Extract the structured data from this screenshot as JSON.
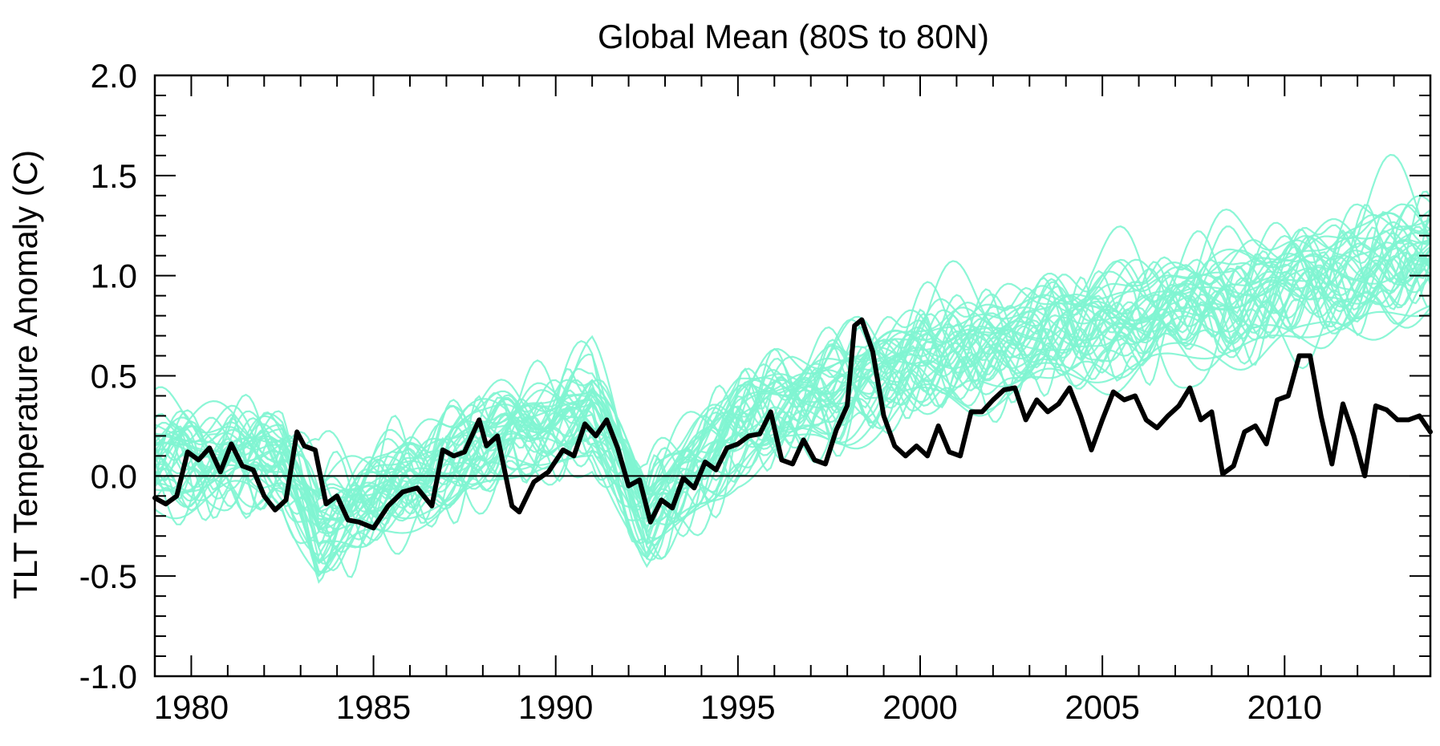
{
  "chart_data": {
    "type": "line",
    "title": "Global Mean (80S to 80N)",
    "xlabel": "",
    "ylabel": "TLT Temperature Anomaly (C)",
    "xlim": [
      1979.0,
      2014.0
    ],
    "ylim": [
      -1.0,
      2.0
    ],
    "x_ticks": [
      1980,
      1985,
      1990,
      1995,
      2000,
      2005,
      2010
    ],
    "x_tick_labels": [
      "1980",
      "1985",
      "1990",
      "1995",
      "2000",
      "2005",
      "2010"
    ],
    "y_ticks": [
      -1.0,
      -0.5,
      0.0,
      0.5,
      1.0,
      1.5,
      2.0
    ],
    "y_tick_labels": [
      "-1.0",
      "-0.5",
      "0.0",
      "0.5",
      "1.0",
      "1.5",
      "2.0"
    ],
    "zero_line": true,
    "grid": false,
    "legend": "none",
    "colors": {
      "observed": "#000000",
      "ensemble": "#7ff5d2",
      "axes": "#000000"
    },
    "ensemble_size": 40,
    "ensemble_trend": {
      "x": [
        1979.0,
        1982.5,
        1983.5,
        1987.5,
        1991.0,
        1992.5,
        1995.0,
        2000.0,
        2005.0,
        2010.0,
        2014.0
      ],
      "y": [
        0.05,
        0.05,
        -0.3,
        0.05,
        0.25,
        -0.3,
        0.15,
        0.45,
        0.6,
        0.75,
        0.9
      ]
    },
    "series": [
      {
        "x": [
          1979.0,
          1979.3,
          1979.6,
          1979.9,
          1980.2,
          1980.5,
          1980.8,
          1981.1,
          1981.4,
          1981.7,
          1982.0,
          1982.3,
          1982.6,
          1982.9,
          1983.1,
          1983.4,
          1983.7,
          1984.0,
          1984.3,
          1984.6,
          1985.0,
          1985.4,
          1985.8,
          1986.2,
          1986.6,
          1986.9,
          1987.2,
          1987.5,
          1987.9,
          1988.1,
          1988.4,
          1988.8,
          1989.0,
          1989.4,
          1989.8,
          1990.2,
          1990.5,
          1990.8,
          1991.1,
          1991.4,
          1991.7,
          1992.0,
          1992.3,
          1992.6,
          1992.9,
          1993.2,
          1993.5,
          1993.8,
          1994.1,
          1994.4,
          1994.7,
          1995.0,
          1995.3,
          1995.6,
          1995.9,
          1996.2,
          1996.5,
          1996.8,
          1997.1,
          1997.4,
          1997.7,
          1998.0,
          1998.2,
          1998.4,
          1998.7,
          1999.0,
          1999.3,
          1999.6,
          1999.9,
          2000.2,
          2000.5,
          2000.8,
          2001.1,
          2001.4,
          2001.7,
          2002.0,
          2002.3,
          2002.6,
          2002.9,
          2003.2,
          2003.5,
          2003.8,
          2004.1,
          2004.4,
          2004.7,
          2005.0,
          2005.3,
          2005.6,
          2005.9,
          2006.2,
          2006.5,
          2006.8,
          2007.1,
          2007.4,
          2007.7,
          2008.0,
          2008.3,
          2008.6,
          2008.9,
          2009.2,
          2009.5,
          2009.8,
          2010.1,
          2010.4,
          2010.7,
          2011.0,
          2011.3,
          2011.6,
          2011.9,
          2012.2,
          2012.5,
          2012.8,
          2013.1,
          2013.4,
          2013.7,
          2014.0
        ],
        "y": [
          -0.11,
          -0.14,
          -0.1,
          0.12,
          0.08,
          0.14,
          0.02,
          0.16,
          0.05,
          0.03,
          -0.1,
          -0.17,
          -0.12,
          0.22,
          0.15,
          0.13,
          -0.14,
          -0.1,
          -0.22,
          -0.23,
          -0.26,
          -0.15,
          -0.08,
          -0.06,
          -0.15,
          0.13,
          0.1,
          0.12,
          0.28,
          0.15,
          0.2,
          -0.15,
          -0.18,
          -0.03,
          0.02,
          0.13,
          0.1,
          0.26,
          0.2,
          0.28,
          0.14,
          -0.05,
          -0.02,
          -0.23,
          -0.12,
          -0.16,
          -0.01,
          -0.06,
          0.07,
          0.03,
          0.14,
          0.16,
          0.2,
          0.21,
          0.32,
          0.08,
          0.06,
          0.18,
          0.08,
          0.06,
          0.23,
          0.35,
          0.75,
          0.78,
          0.62,
          0.3,
          0.15,
          0.1,
          0.15,
          0.1,
          0.25,
          0.12,
          0.1,
          0.32,
          0.32,
          0.38,
          0.43,
          0.44,
          0.28,
          0.38,
          0.32,
          0.36,
          0.44,
          0.3,
          0.13,
          0.28,
          0.42,
          0.38,
          0.4,
          0.28,
          0.24,
          0.3,
          0.35,
          0.44,
          0.28,
          0.32,
          0.01,
          0.05,
          0.22,
          0.25,
          0.16,
          0.38,
          0.4,
          0.6,
          0.6,
          0.3,
          0.06,
          0.36,
          0.2,
          0.0,
          0.35,
          0.33,
          0.28,
          0.28,
          0.3,
          0.22
        ]
      }
    ]
  }
}
